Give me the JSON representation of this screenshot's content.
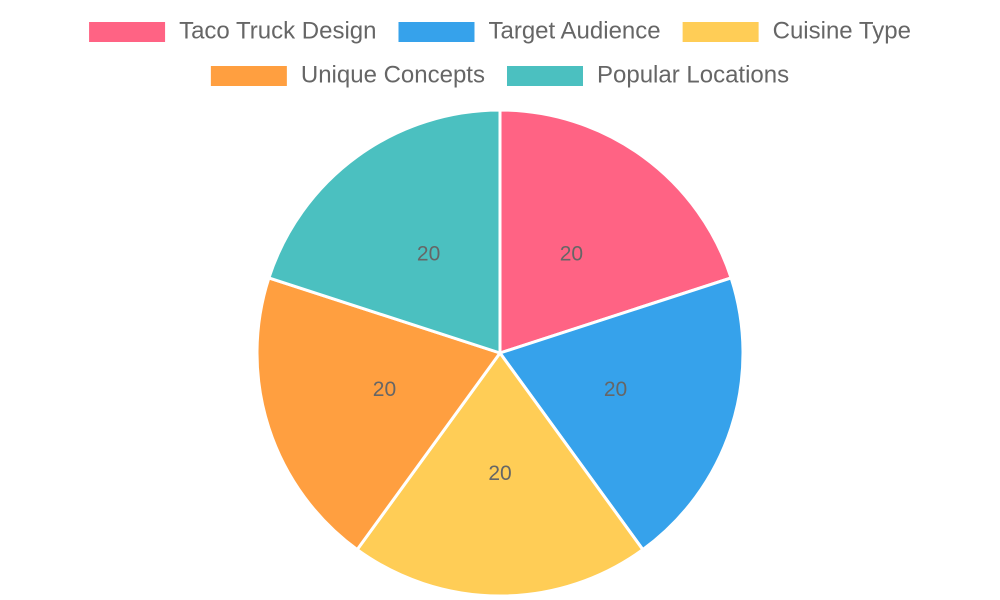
{
  "chart_data": {
    "type": "pie",
    "categories": [
      "Taco Truck Design",
      "Target Audience",
      "Cuisine Type",
      "Unique Concepts",
      "Popular Locations"
    ],
    "values": [
      20,
      20,
      20,
      20,
      20
    ],
    "colors": [
      "#ff6384",
      "#36a2eb",
      "#ffcd56",
      "#ff9f40",
      "#4bc0c0"
    ],
    "legend": "top"
  }
}
